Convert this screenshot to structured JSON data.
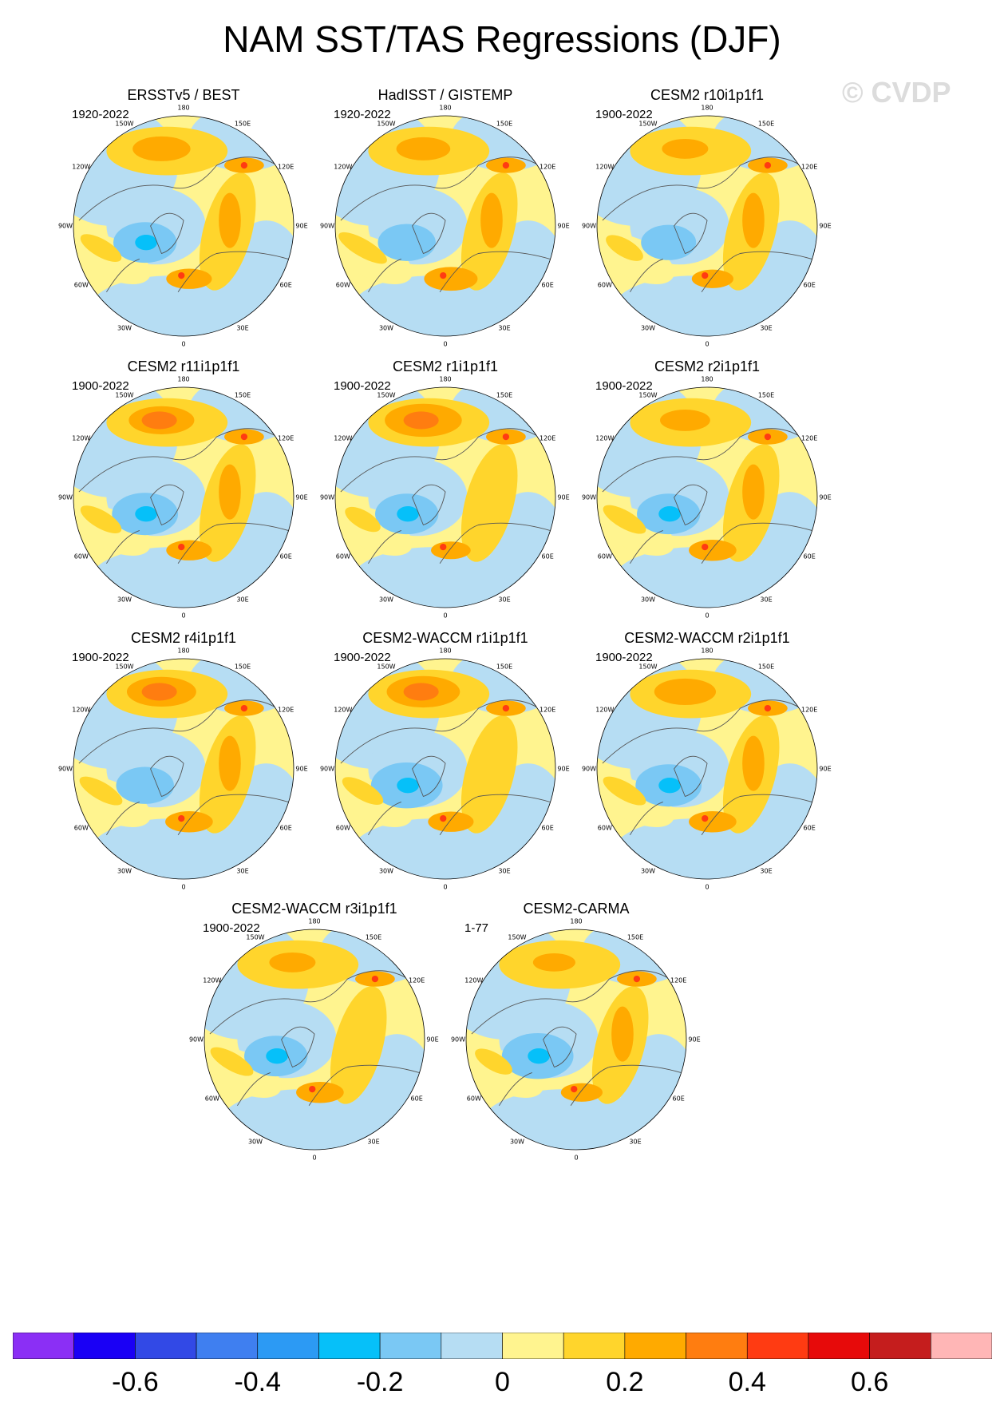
{
  "title": "NAM SST/TAS Regressions (DJF)",
  "watermark": "© CVDP",
  "chart_data": {
    "type": "polar-stereographic map panels",
    "variable": "SST/TAS regression onto NAM",
    "season": "DJF",
    "longitude_labels": [
      "180",
      "150E",
      "120E",
      "90E",
      "60E",
      "30E",
      "0",
      "30W",
      "60W",
      "90W",
      "120W",
      "150W"
    ],
    "panels": [
      {
        "title": "ERSSTv5 / BEST",
        "period": "1920-2022"
      },
      {
        "title": "HadISST / GISTEMP",
        "period": "1920-2022"
      },
      {
        "title": "CESM2 r10i1p1f1",
        "period": "1900-2022"
      },
      {
        "title": "CESM2 r11i1p1f1",
        "period": "1900-2022"
      },
      {
        "title": "CESM2 r1i1p1f1",
        "period": "1900-2022"
      },
      {
        "title": "CESM2 r2i1p1f1",
        "period": "1900-2022"
      },
      {
        "title": "CESM2 r4i1p1f1",
        "period": "1900-2022"
      },
      {
        "title": "CESM2-WACCM r1i1p1f1",
        "period": "1900-2022"
      },
      {
        "title": "CESM2-WACCM r2i1p1f1",
        "period": "1900-2022"
      },
      {
        "title": "CESM2-WACCM r3i1p1f1",
        "period": "1900-2022"
      },
      {
        "title": "CESM2-CARMA",
        "period": "1-77"
      }
    ],
    "colorbar": {
      "colors": [
        "#8b2ff5",
        "#1a00f5",
        "#3249e6",
        "#3f7ff0",
        "#2c9af4",
        "#06c0f9",
        "#7ac8f4",
        "#b6ddf3",
        "#fff48f",
        "#ffd52c",
        "#ffaa00",
        "#ff7d10",
        "#ff3b12",
        "#e70a0a",
        "#c51d1d",
        "#ffb6b6"
      ],
      "levels": [
        -0.7,
        -0.6,
        -0.5,
        -0.4,
        -0.3,
        -0.2,
        -0.1,
        0,
        0.1,
        0.2,
        0.3,
        0.4,
        0.5,
        0.6,
        0.7
      ],
      "tick_labels": [
        "-0.6",
        "-0.4",
        "-0.2",
        "0",
        "0.2",
        "0.4",
        "0.6"
      ]
    }
  }
}
